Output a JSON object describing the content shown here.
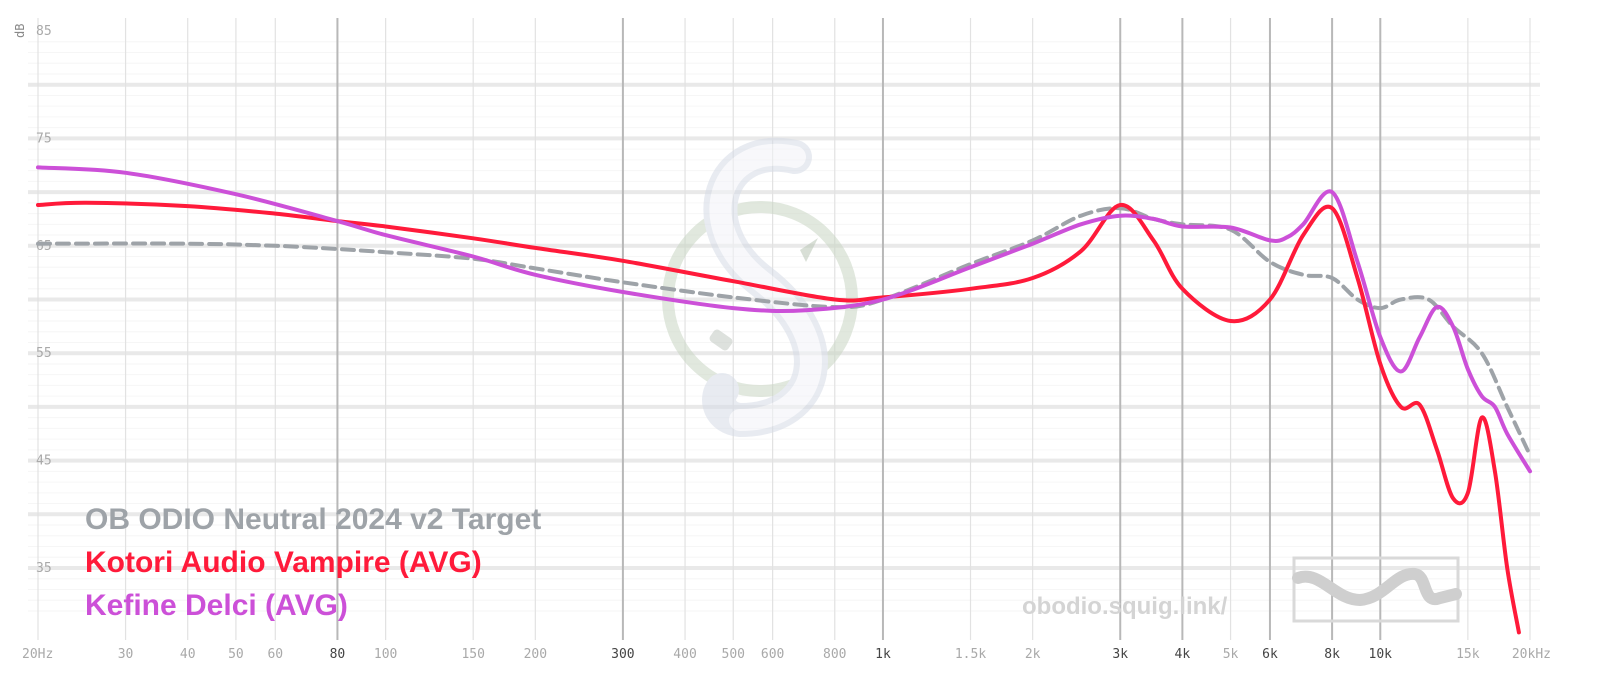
{
  "chart_data": {
    "type": "line",
    "ylabel": "dB",
    "x_scale": "log",
    "xlim": [
      20,
      20000
    ],
    "ylim": [
      30,
      86
    ],
    "grid": true,
    "y_ticks": [
      "85",
      "75",
      "65",
      "55",
      "45",
      "35"
    ],
    "y_tick_values": [
      85,
      75,
      65,
      55,
      45,
      35
    ],
    "x_ticks": [
      {
        "label": "20Hz",
        "value": 20,
        "major": false
      },
      {
        "label": "30",
        "value": 30,
        "major": false
      },
      {
        "label": "40",
        "value": 40,
        "major": false
      },
      {
        "label": "50",
        "value": 50,
        "major": false
      },
      {
        "label": "60",
        "value": 60,
        "major": false
      },
      {
        "label": "80",
        "value": 80,
        "major": true
      },
      {
        "label": "100",
        "value": 100,
        "major": false
      },
      {
        "label": "150",
        "value": 150,
        "major": false
      },
      {
        "label": "200",
        "value": 200,
        "major": false
      },
      {
        "label": "300",
        "value": 300,
        "major": true
      },
      {
        "label": "400",
        "value": 400,
        "major": false
      },
      {
        "label": "500",
        "value": 500,
        "major": false
      },
      {
        "label": "600",
        "value": 600,
        "major": false
      },
      {
        "label": "800",
        "value": 800,
        "major": false
      },
      {
        "label": "1k",
        "value": 1000,
        "major": true
      },
      {
        "label": "1.5k",
        "value": 1500,
        "major": false
      },
      {
        "label": "2k",
        "value": 2000,
        "major": false
      },
      {
        "label": "3k",
        "value": 3000,
        "major": true
      },
      {
        "label": "4k",
        "value": 4000,
        "major": true
      },
      {
        "label": "5k",
        "value": 5000,
        "major": false
      },
      {
        "label": "6k",
        "value": 6000,
        "major": true
      },
      {
        "label": "8k",
        "value": 8000,
        "major": true
      },
      {
        "label": "10k",
        "value": 10000,
        "major": true
      },
      {
        "label": "15k",
        "value": 15000,
        "major": false
      },
      {
        "label": "20kHz",
        "value": 20000,
        "major": false
      }
    ],
    "series": [
      {
        "name": "OB ODIO Neutral 2024 v2 Target",
        "color": "#9ea3a8",
        "dashed": true,
        "x": [
          20,
          40,
          60,
          80,
          100,
          150,
          200,
          300,
          500,
          800,
          1000,
          1500,
          2000,
          2500,
          3000,
          3500,
          4000,
          5000,
          6000,
          7000,
          8000,
          9000,
          10000,
          11000,
          12500,
          14000,
          16000,
          18000,
          20000
        ],
        "y": [
          65.2,
          65.2,
          65.0,
          64.7,
          64.4,
          63.8,
          62.9,
          61.6,
          60.2,
          59.3,
          60.0,
          63.3,
          65.5,
          67.8,
          68.5,
          67.5,
          67.0,
          66.5,
          63.5,
          62.3,
          62.0,
          60.0,
          59.2,
          60.0,
          60.0,
          57.5,
          55.0,
          50.0,
          45.5
        ]
      },
      {
        "name": "Kotori Audio Vampire (AVG)",
        "color": "#ff1a3a",
        "dashed": false,
        "x": [
          20,
          25,
          40,
          60,
          80,
          100,
          150,
          200,
          300,
          500,
          800,
          1000,
          1500,
          2000,
          2500,
          3000,
          3500,
          4000,
          5000,
          6000,
          7000,
          8000,
          9000,
          10000,
          11000,
          12000,
          13000,
          14000,
          15000,
          16000,
          17000,
          18000,
          19000
        ],
        "y": [
          68.8,
          69.0,
          68.7,
          68.0,
          67.3,
          66.8,
          65.7,
          64.8,
          63.6,
          61.7,
          60.0,
          60.2,
          61.0,
          62.0,
          64.5,
          68.8,
          65.5,
          61.0,
          58.0,
          60.0,
          66.0,
          68.5,
          62.0,
          54.0,
          50.0,
          50.2,
          46.0,
          41.5,
          42.0,
          49.0,
          44.0,
          35.0,
          29.0
        ]
      },
      {
        "name": "Kefine Delci (AVG)",
        "color": "#cc50d8",
        "dashed": false,
        "x": [
          20,
          30,
          50,
          80,
          100,
          150,
          200,
          300,
          500,
          700,
          1000,
          1500,
          2000,
          2500,
          3000,
          3500,
          4000,
          5000,
          6000,
          6500,
          7000,
          8000,
          9000,
          10000,
          11000,
          12000,
          13000,
          14000,
          15000,
          16000,
          17000,
          18000,
          20000
        ],
        "y": [
          72.3,
          71.8,
          69.8,
          67.3,
          66.0,
          64.0,
          62.3,
          60.7,
          59.2,
          59.0,
          60.0,
          63.0,
          65.2,
          67.0,
          67.8,
          67.5,
          66.8,
          66.7,
          65.5,
          65.8,
          67.0,
          70.0,
          63.5,
          56.5,
          53.3,
          56.5,
          59.3,
          57.5,
          53.5,
          51.0,
          50.0,
          47.5,
          44.0
        ]
      }
    ]
  },
  "watermark_url": "obodio.squig.link/"
}
